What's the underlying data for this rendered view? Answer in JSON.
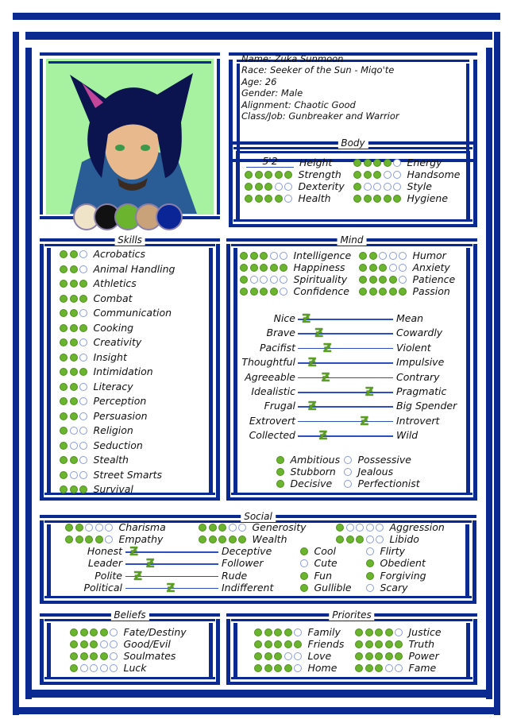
{
  "colors": {
    "frame": "#0a2a92",
    "dot_filled": "#6ab42e",
    "dot_empty": "#8a9be0",
    "portrait_bg": "#a6f2a0"
  },
  "portrait": {
    "swatches": [
      "#efe4c8",
      "#111111",
      "#6ab42e",
      "#c9a27a",
      "#0a2596"
    ]
  },
  "info": [
    "Name: Zuka Sunmoon",
    "Race: Seeker of the Sun - Miqo'te",
    "Age: 26",
    "Gender: Male",
    "Alignment: Chaotic Good",
    "Class/Job: Gunbreaker and Warrior"
  ],
  "body": {
    "title": "Body",
    "height_value": "5'2",
    "height_label": "Height",
    "left": [
      {
        "label": "Strength",
        "value": 5,
        "max": 5
      },
      {
        "label": "Dexterity",
        "value": 3,
        "max": 5
      },
      {
        "label": "Health",
        "value": 4,
        "max": 5
      }
    ],
    "right": [
      {
        "label": "Energy",
        "value": 4,
        "max": 5
      },
      {
        "label": "Handsome",
        "value": 3,
        "max": 5
      },
      {
        "label": "Style",
        "value": 1,
        "max": 5
      },
      {
        "label": "Hygiene",
        "value": 5,
        "max": 5
      }
    ]
  },
  "skills": {
    "title": "Skills",
    "items": [
      {
        "label": "Acrobatics",
        "value": 2,
        "max": 3
      },
      {
        "label": "Animal Handling",
        "value": 2,
        "max": 3
      },
      {
        "label": "Athletics",
        "value": 3,
        "max": 3
      },
      {
        "label": "Combat",
        "value": 3,
        "max": 3
      },
      {
        "label": "Communication",
        "value": 2,
        "max": 3
      },
      {
        "label": "Cooking",
        "value": 3,
        "max": 3
      },
      {
        "label": "Creativity",
        "value": 2,
        "max": 3
      },
      {
        "label": "Insight",
        "value": 2,
        "max": 3
      },
      {
        "label": "Intimidation",
        "value": 3,
        "max": 3
      },
      {
        "label": "Literacy",
        "value": 2,
        "max": 3
      },
      {
        "label": "Perception",
        "value": 2,
        "max": 3
      },
      {
        "label": "Persuasion",
        "value": 2,
        "max": 3
      },
      {
        "label": "Religion",
        "value": 1,
        "max": 3
      },
      {
        "label": "Seduction",
        "value": 1,
        "max": 3
      },
      {
        "label": "Stealth",
        "value": 2,
        "max": 3
      },
      {
        "label": "Street Smarts",
        "value": 1,
        "max": 3
      },
      {
        "label": "Survival",
        "value": 3,
        "max": 3
      }
    ]
  },
  "mind": {
    "title": "Mind",
    "left": [
      {
        "label": "Intelligence",
        "value": 3,
        "max": 5
      },
      {
        "label": "Happiness",
        "value": 5,
        "max": 5
      },
      {
        "label": "Spirituality",
        "value": 1,
        "max": 5
      },
      {
        "label": "Confidence",
        "value": 4,
        "max": 5
      }
    ],
    "right": [
      {
        "label": "Humor",
        "value": 2,
        "max": 5
      },
      {
        "label": "Anxiety",
        "value": 3,
        "max": 5
      },
      {
        "label": "Patience",
        "value": 4,
        "max": 5
      },
      {
        "label": "Passion",
        "value": 5,
        "max": 5
      }
    ],
    "sliders": [
      {
        "left": "Nice",
        "right": "Mean",
        "position": 0.05
      },
      {
        "left": "Brave",
        "right": "Cowardly",
        "position": 0.2
      },
      {
        "left": "Pacifist",
        "right": "Violent",
        "position": 0.3
      },
      {
        "left": "Thoughtful",
        "right": "Impulsive",
        "position": 0.12
      },
      {
        "left": "Agreeable",
        "right": "Contrary",
        "position": 0.28
      },
      {
        "left": "Idealistic",
        "right": "Pragmatic",
        "position": 0.8
      },
      {
        "left": "Frugal",
        "right": "Big Spender",
        "position": 0.12
      },
      {
        "left": "Extrovert",
        "right": "Introvert",
        "position": 0.74
      },
      {
        "left": "Collected",
        "right": "Wild",
        "position": 0.25
      }
    ],
    "traits": [
      {
        "label": "Ambitious",
        "value": 1,
        "max": 1
      },
      {
        "label": "Stubborn",
        "value": 1,
        "max": 1
      },
      {
        "label": "Decisive",
        "value": 1,
        "max": 1
      },
      {
        "label": "Possessive",
        "value": 0,
        "max": 1
      },
      {
        "label": "Jealous",
        "value": 0,
        "max": 1
      },
      {
        "label": "Perfectionist",
        "value": 0,
        "max": 1
      }
    ]
  },
  "social": {
    "title": "Social",
    "ratings": [
      {
        "label": "Charisma",
        "value": 2,
        "max": 5
      },
      {
        "label": "Empathy",
        "value": 4,
        "max": 5
      },
      {
        "label": "Generosity",
        "value": 3,
        "max": 5
      },
      {
        "label": "Wealth",
        "value": 5,
        "max": 5
      },
      {
        "label": "Aggression",
        "value": 1,
        "max": 5
      },
      {
        "label": "Libido",
        "value": 3,
        "max": 5
      }
    ],
    "sliders": [
      {
        "left": "Honest",
        "right": "Deceptive",
        "position": 0.05
      },
      {
        "left": "Leader",
        "right": "Follower",
        "position": 0.25
      },
      {
        "left": "Polite",
        "right": "Rude",
        "position": 0.1
      },
      {
        "left": "Political",
        "right": "Indifferent",
        "position": 0.5
      }
    ],
    "traits": [
      {
        "label": "Cool",
        "value": 1,
        "max": 1
      },
      {
        "label": "Cute",
        "value": 0,
        "max": 1
      },
      {
        "label": "Fun",
        "value": 1,
        "max": 1
      },
      {
        "label": "Gullible",
        "value": 1,
        "max": 1
      },
      {
        "label": "Flirty",
        "value": 0,
        "max": 1
      },
      {
        "label": "Obedient",
        "value": 1,
        "max": 1
      },
      {
        "label": "Forgiving",
        "value": 1,
        "max": 1
      },
      {
        "label": "Scary",
        "value": 0,
        "max": 1
      }
    ]
  },
  "beliefs": {
    "title": "Beliefs",
    "items": [
      {
        "label": "Fate/Destiny",
        "value": 4,
        "max": 5
      },
      {
        "label": "Good/Evil",
        "value": 3,
        "max": 5
      },
      {
        "label": "Soulmates",
        "value": 4,
        "max": 5
      },
      {
        "label": "Luck",
        "value": 1,
        "max": 5
      }
    ]
  },
  "priorities": {
    "title": "Priorites",
    "items": [
      {
        "label": "Family",
        "value": 4,
        "max": 5
      },
      {
        "label": "Friends",
        "value": 5,
        "max": 5
      },
      {
        "label": "Love",
        "value": 3,
        "max": 5
      },
      {
        "label": "Home",
        "value": 4,
        "max": 5
      },
      {
        "label": "Justice",
        "value": 4,
        "max": 5
      },
      {
        "label": "Truth",
        "value": 5,
        "max": 5
      },
      {
        "label": "Power",
        "value": 5,
        "max": 5
      },
      {
        "label": "Fame",
        "value": 3,
        "max": 5
      }
    ]
  }
}
